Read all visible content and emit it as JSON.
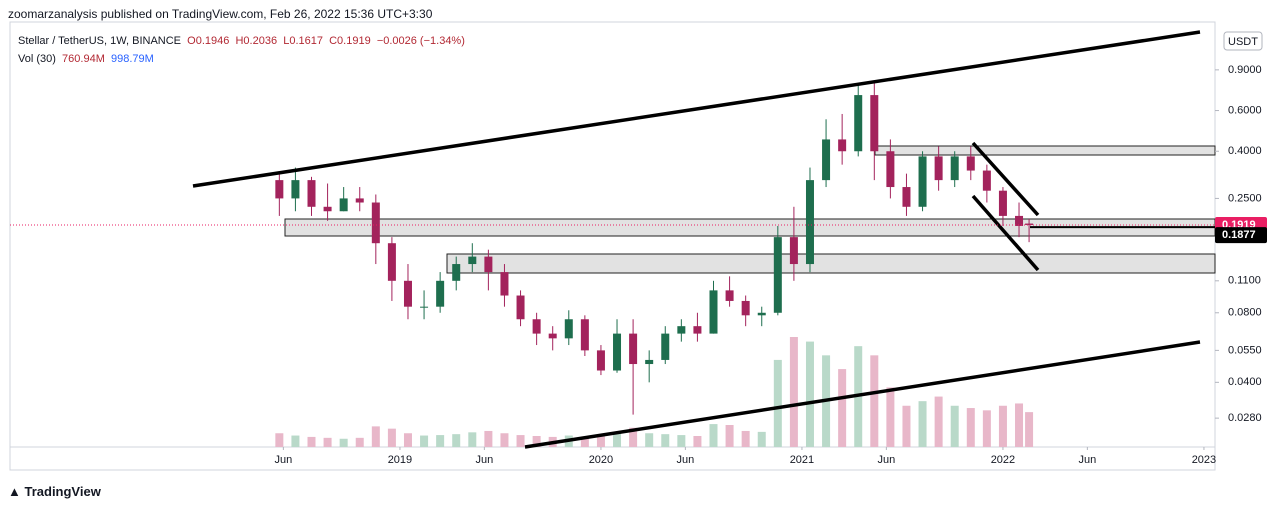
{
  "header": {
    "publisher": "zoomarzanalysis published on TradingView.com, Feb 26, 2022 15:36 UTC+3:30",
    "footer": "TradingView"
  },
  "chart_data": {
    "type": "candlestick",
    "legend": {
      "symbol": "Stellar / TetherUS, 1W, BINANCE",
      "open": "O0.1946",
      "high": "H0.2036",
      "low": "L0.1617",
      "close": "C0.1919",
      "change": "−0.0026 (−1.34%)",
      "volume_title": "Vol (30)",
      "volume": "760.94M",
      "volume_ma": "998.79M"
    },
    "currency": "USDT",
    "up_color": "#1e6e4e",
    "down_color": "#a3235c",
    "volume_up_color": "#b9d9c9",
    "volume_down_color": "#e8b7c9",
    "log_scale": true,
    "x": [
      2018.4,
      2018.48,
      2018.56,
      2018.64,
      2018.72,
      2018.8,
      2018.88,
      2018.96,
      2019.04,
      2019.12,
      2019.2,
      2019.28,
      2019.36,
      2019.44,
      2019.52,
      2019.6,
      2019.68,
      2019.76,
      2019.84,
      2019.92,
      2020.0,
      2020.08,
      2020.16,
      2020.24,
      2020.32,
      2020.4,
      2020.48,
      2020.56,
      2020.64,
      2020.72,
      2020.8,
      2020.88,
      2020.96,
      2021.04,
      2021.12,
      2021.2,
      2021.28,
      2021.36,
      2021.44,
      2021.52,
      2021.6,
      2021.68,
      2021.76,
      2021.84,
      2021.92,
      2022.0,
      2022.08,
      2022.13
    ],
    "open": [
      0.3,
      0.25,
      0.3,
      0.23,
      0.22,
      0.25,
      0.24,
      0.16,
      0.11,
      0.085,
      0.085,
      0.11,
      0.13,
      0.14,
      0.12,
      0.095,
      0.075,
      0.065,
      0.062,
      0.075,
      0.055,
      0.045,
      0.065,
      0.048,
      0.05,
      0.065,
      0.07,
      0.065,
      0.1,
      0.09,
      0.078,
      0.08,
      0.17,
      0.13,
      0.3,
      0.45,
      0.4,
      0.7,
      0.4,
      0.28,
      0.23,
      0.38,
      0.3,
      0.38,
      0.33,
      0.27,
      0.21,
      0.1946
    ],
    "high": [
      0.32,
      0.34,
      0.31,
      0.29,
      0.28,
      0.28,
      0.26,
      0.17,
      0.13,
      0.1,
      0.12,
      0.14,
      0.16,
      0.15,
      0.13,
      0.1,
      0.08,
      0.07,
      0.082,
      0.078,
      0.058,
      0.075,
      0.075,
      0.055,
      0.07,
      0.075,
      0.08,
      0.11,
      0.115,
      0.095,
      0.085,
      0.19,
      0.23,
      0.34,
      0.55,
      0.58,
      0.78,
      0.8,
      0.45,
      0.32,
      0.4,
      0.42,
      0.4,
      0.42,
      0.35,
      0.28,
      0.24,
      0.2036
    ],
    "low": [
      0.21,
      0.22,
      0.21,
      0.2,
      0.22,
      0.22,
      0.13,
      0.09,
      0.075,
      0.075,
      0.08,
      0.1,
      0.12,
      0.1,
      0.085,
      0.07,
      0.058,
      0.055,
      0.058,
      0.052,
      0.043,
      0.044,
      0.029,
      0.04,
      0.048,
      0.06,
      0.06,
      0.065,
      0.085,
      0.07,
      0.07,
      0.078,
      0.11,
      0.12,
      0.28,
      0.35,
      0.38,
      0.3,
      0.25,
      0.21,
      0.22,
      0.27,
      0.28,
      0.3,
      0.24,
      0.19,
      0.17,
      0.1617
    ],
    "close": [
      0.25,
      0.3,
      0.23,
      0.22,
      0.25,
      0.24,
      0.16,
      0.11,
      0.085,
      0.085,
      0.11,
      0.13,
      0.14,
      0.12,
      0.095,
      0.075,
      0.065,
      0.062,
      0.075,
      0.055,
      0.045,
      0.065,
      0.048,
      0.05,
      0.065,
      0.07,
      0.065,
      0.1,
      0.09,
      0.078,
      0.08,
      0.17,
      0.13,
      0.3,
      0.45,
      0.4,
      0.7,
      0.4,
      0.28,
      0.23,
      0.38,
      0.3,
      0.38,
      0.33,
      0.27,
      0.21,
      0.19,
      0.1919
    ],
    "volume": [
      300,
      250,
      220,
      200,
      180,
      200,
      450,
      400,
      300,
      250,
      260,
      280,
      320,
      350,
      300,
      260,
      240,
      220,
      250,
      230,
      260,
      300,
      420,
      300,
      280,
      260,
      240,
      500,
      480,
      350,
      330,
      1900,
      2400,
      2300,
      2000,
      1700,
      2200,
      2000,
      1300,
      900,
      1000,
      1100,
      900,
      850,
      800,
      900,
      950,
      760.94
    ],
    "xlim": [
      2017.06,
      2023.055
    ],
    "xticks": [
      {
        "value": 2018.42,
        "label": "Jun"
      },
      {
        "value": 2019,
        "label": "2019"
      },
      {
        "value": 2019.42,
        "label": "Jun"
      },
      {
        "value": 2020,
        "label": "2020"
      },
      {
        "value": 2020.42,
        "label": "Jun"
      },
      {
        "value": 2021,
        "label": "2021"
      },
      {
        "value": 2021.42,
        "label": "Jun"
      },
      {
        "value": 2022,
        "label": "2022"
      },
      {
        "value": 2022.42,
        "label": "Jun"
      },
      {
        "value": 2023,
        "label": "2023"
      }
    ],
    "ylim": [
      0.021,
      1.45
    ],
    "yticks": [
      {
        "value": 0.9,
        "label": "0.9000"
      },
      {
        "value": 0.6,
        "label": "0.6000"
      },
      {
        "value": 0.4,
        "label": "0.4000"
      },
      {
        "value": 0.25,
        "label": "0.2500"
      },
      {
        "value": 0.11,
        "label": "0.1100"
      },
      {
        "value": 0.08,
        "label": "0.0800"
      },
      {
        "value": 0.055,
        "label": "0.0550"
      },
      {
        "value": 0.04,
        "label": "0.0400"
      },
      {
        "value": 0.028,
        "label": "0.0280"
      }
    ],
    "price_markers": [
      {
        "value": 0.1919,
        "color": "#e91e63"
      },
      {
        "value": 0.1877,
        "color": "#000000"
      }
    ]
  }
}
